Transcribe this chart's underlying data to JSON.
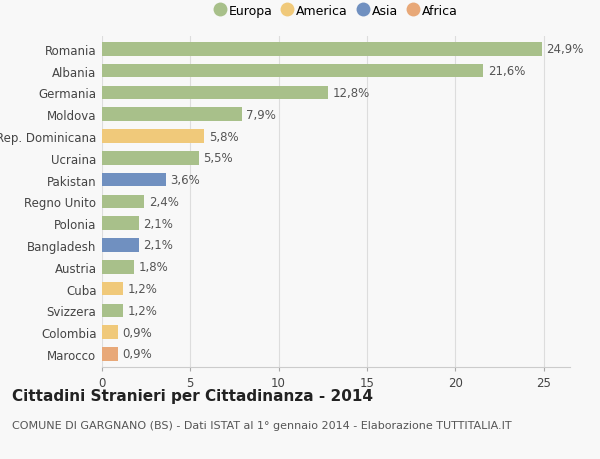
{
  "countries": [
    "Romania",
    "Albania",
    "Germania",
    "Moldova",
    "Rep. Dominicana",
    "Ucraina",
    "Pakistan",
    "Regno Unito",
    "Polonia",
    "Bangladesh",
    "Austria",
    "Cuba",
    "Svizzera",
    "Colombia",
    "Marocco"
  ],
  "values": [
    24.9,
    21.6,
    12.8,
    7.9,
    5.8,
    5.5,
    3.6,
    2.4,
    2.1,
    2.1,
    1.8,
    1.2,
    1.2,
    0.9,
    0.9
  ],
  "labels": [
    "24,9%",
    "21,6%",
    "12,8%",
    "7,9%",
    "5,8%",
    "5,5%",
    "3,6%",
    "2,4%",
    "2,1%",
    "2,1%",
    "1,8%",
    "1,2%",
    "1,2%",
    "0,9%",
    "0,9%"
  ],
  "continents": [
    "Europa",
    "Europa",
    "Europa",
    "Europa",
    "America",
    "Europa",
    "Asia",
    "Europa",
    "Europa",
    "Asia",
    "Europa",
    "America",
    "Europa",
    "America",
    "Africa"
  ],
  "colors": {
    "Europa": "#a8c08a",
    "America": "#f0c97a",
    "Asia": "#7090c0",
    "Africa": "#e8a878"
  },
  "legend_order": [
    "Europa",
    "America",
    "Asia",
    "Africa"
  ],
  "title": "Cittadini Stranieri per Cittadinanza - 2014",
  "subtitle": "COMUNE DI GARGNANO (BS) - Dati ISTAT al 1° gennaio 2014 - Elaborazione TUTTITALIA.IT",
  "xlim": [
    0,
    26.5
  ],
  "background_color": "#f8f8f8",
  "grid_color": "#dddddd",
  "bar_height": 0.62,
  "title_fontsize": 11,
  "subtitle_fontsize": 8,
  "label_fontsize": 8.5,
  "tick_fontsize": 8.5,
  "legend_fontsize": 9
}
